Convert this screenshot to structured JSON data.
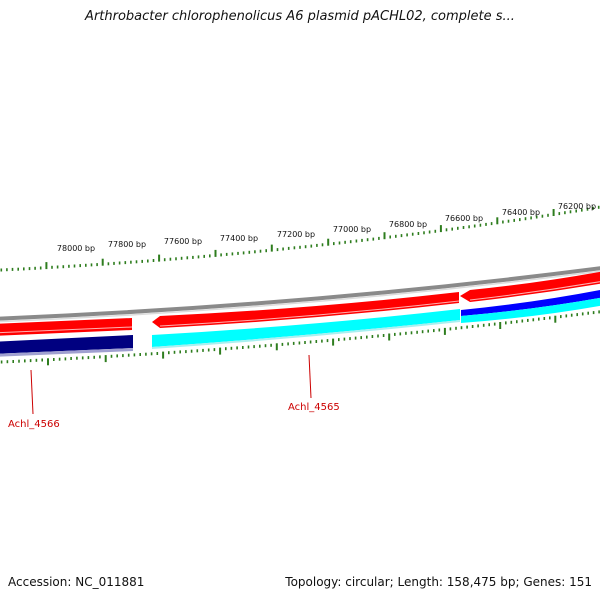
{
  "title": "Arthrobacter chlorophenolicus A6 plasmid pACHL02, complete s...",
  "footer": {
    "accession": "Accession: NC_011881",
    "summary": "Topology: circular; Length: 158,475 bp; Genes: 151"
  },
  "ruler": {
    "labels": [
      "78000 bp",
      "77800 bp",
      "77600 bp",
      "77400 bp",
      "77200 bp",
      "77000 bp",
      "76800 bp",
      "76600 bp",
      "76400 bp",
      "76200 bp"
    ]
  },
  "genes": [
    {
      "label": "Achl_4566"
    },
    {
      "label": "Achl_4565"
    }
  ],
  "colors": {
    "ruler_tick": "#2e7d1e",
    "backbone": "#8a8a8a",
    "forward_strand": "#ff0000",
    "reverse_dark": "#000080",
    "reverse_light": "#00ffff",
    "reverse_blue": "#0000ff",
    "gene_label": "#cc0000"
  }
}
